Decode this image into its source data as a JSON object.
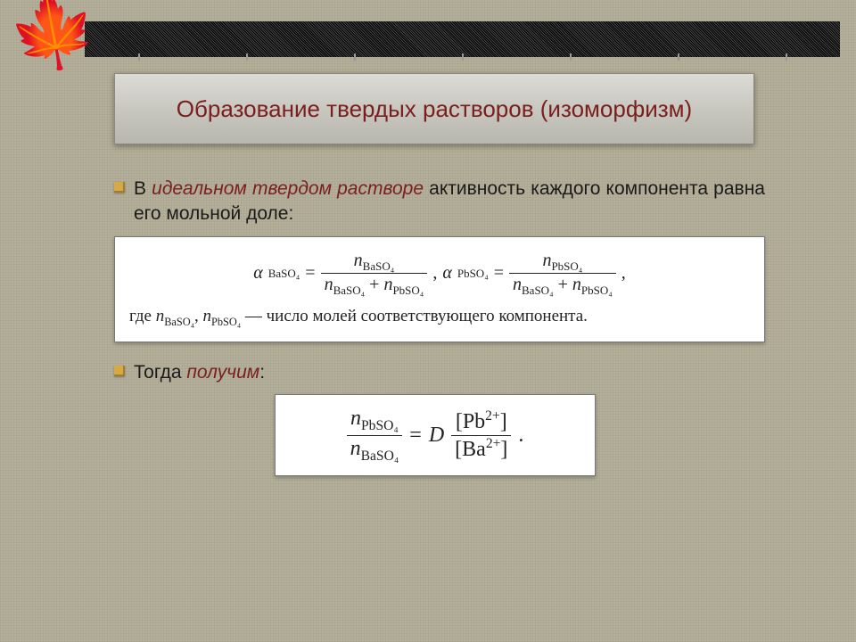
{
  "colors": {
    "background": "#b5b09a",
    "title_text": "#7a1e1e",
    "emphasis_text": "#7a1e1e",
    "body_text": "#1a1a1a",
    "bullet": "#d4a946",
    "formula_bg": "#ffffff",
    "formula_border": "#777777",
    "leaf": "#8b4a1a"
  },
  "title": "Образование твердых растворов (изоморфизм)",
  "body": {
    "bullet1_pre": "В ",
    "bullet1_em": "идеальном твердом растворе",
    "bullet1_post": " активность каждого компонента равна его мольной доле:",
    "bullet2_pre": "Тогда ",
    "bullet2_em": "получим",
    "bullet2_post": ":"
  },
  "formula1": {
    "alpha1_lhs": "α",
    "alpha1_sub": "BaSO₄",
    "eq": " = ",
    "n_ba": "n",
    "n_ba_sub": "BaSO₄",
    "n_pb": "n",
    "n_pb_sub": "PbSO₄",
    "plus": " + ",
    "alpha2_sub": "PbSO₄",
    "sep": ",   ",
    "trail": ",",
    "caption_pre": "где ",
    "caption_mid": ", ",
    "caption_post": " — число молей соответствующего компонента."
  },
  "formula2": {
    "eq": " = ",
    "D": "D",
    "pb_ion": "[Pb",
    "ba_ion": "[Ba",
    "sup": "2+",
    "close": "]",
    "dot": "."
  }
}
